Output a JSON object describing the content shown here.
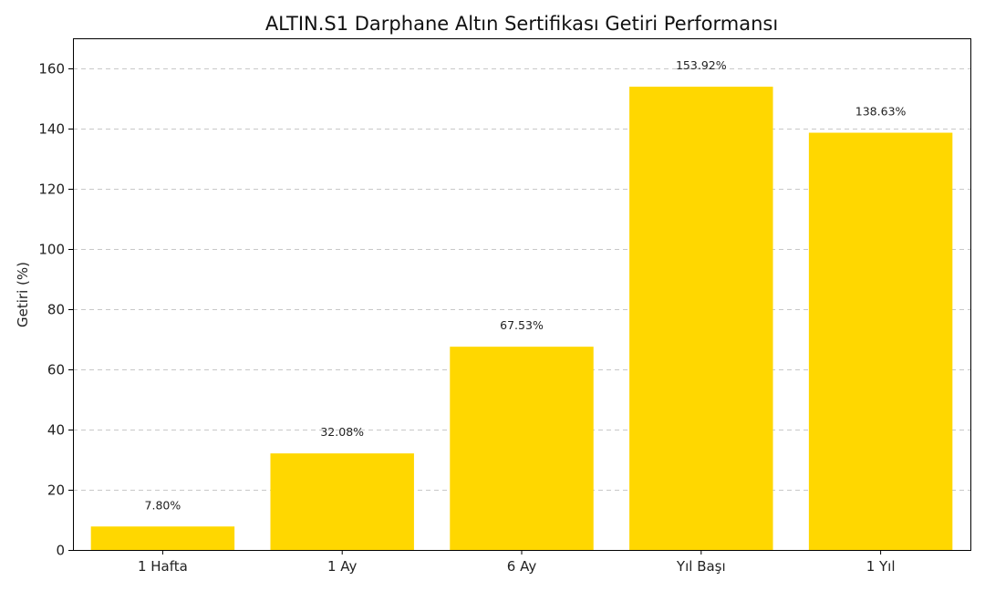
{
  "chart_data": {
    "type": "bar",
    "title": "ALTIN.S1 Darphane Altın Sertifikası Getiri Performansı",
    "xlabel": "",
    "ylabel": "Getiri (%)",
    "categories": [
      "1 Hafta",
      "1 Ay",
      "6 Ay",
      "Yıl Başı",
      "1 Yıl"
    ],
    "values": [
      7.8,
      32.08,
      67.53,
      153.92,
      138.63
    ],
    "data_labels": [
      "7.80%",
      "32.08%",
      "67.53%",
      "153.92%",
      "138.63%"
    ],
    "ylim": [
      0,
      170
    ],
    "yticks": [
      0,
      20,
      40,
      60,
      80,
      100,
      120,
      140,
      160
    ],
    "bar_color": "#FFD700",
    "grid": "horizontal-dashed",
    "legend": "none"
  }
}
